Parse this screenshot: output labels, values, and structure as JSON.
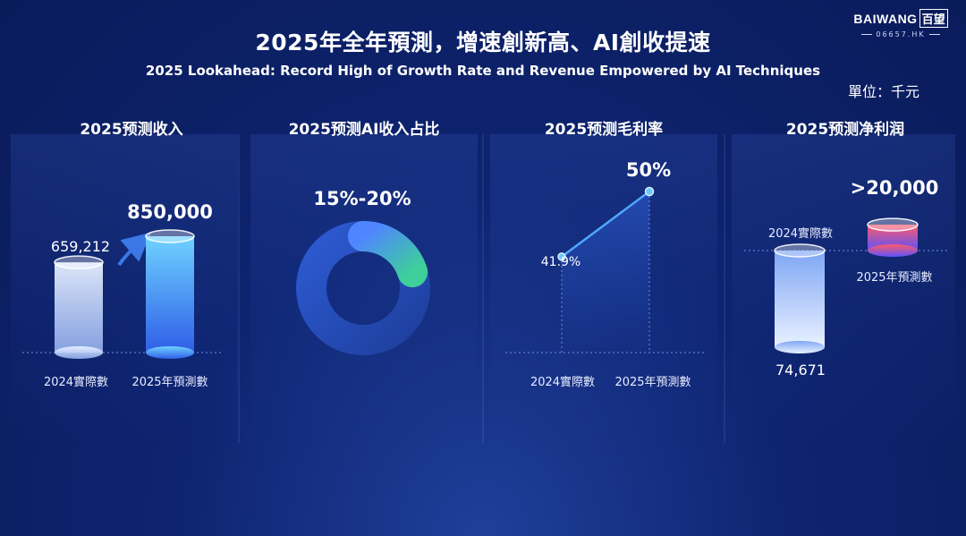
{
  "header": {
    "title": "2025年全年預測，增速創新高、AI創收提速",
    "subtitle": "2025 Lookahead: Record High of Growth Rate and Revenue Empowered by AI Techniques",
    "unit": "單位：千元",
    "logo": {
      "brand": "BAIWANG",
      "cn": "百望",
      "code": "06657.HK"
    }
  },
  "chart_data": [
    {
      "type": "bar",
      "title": "2025预测收入",
      "categories": [
        "2024實際數",
        "2025年預測數"
      ],
      "values": [
        659212,
        850000
      ],
      "value_labels": [
        "659,212",
        "850,000"
      ]
    },
    {
      "type": "pie",
      "title": "2025预测AI收入占比",
      "value_label": "15%-20%",
      "range": [
        15,
        20
      ]
    },
    {
      "type": "line",
      "title": "2025预测毛利率",
      "categories": [
        "2024實際數",
        "2025年預測數"
      ],
      "values": [
        41.9,
        50
      ],
      "value_labels": [
        "41.9%",
        "50%"
      ]
    },
    {
      "type": "bar",
      "title": "2025预测净利润",
      "categories": [
        "2024實際數",
        "2025年預測數"
      ],
      "values": [
        74671,
        20000
      ],
      "value_labels": [
        "74,671",
        ">20,000"
      ]
    }
  ]
}
